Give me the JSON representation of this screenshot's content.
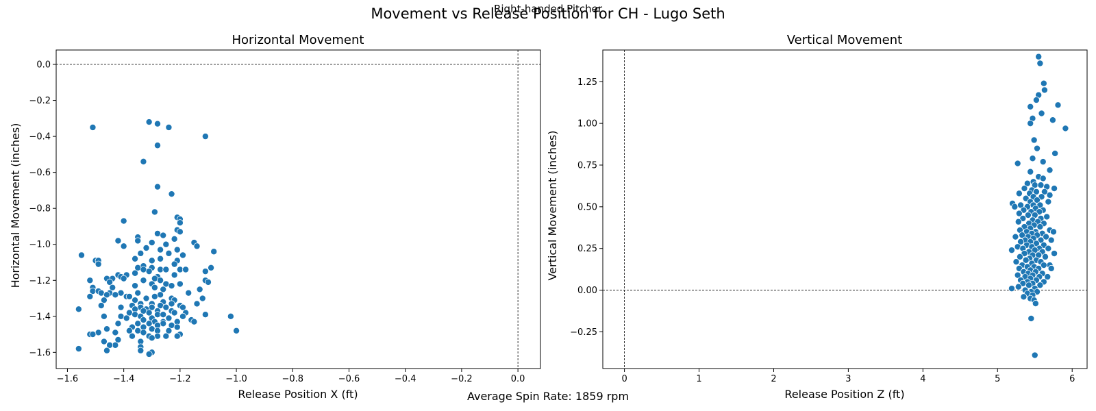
{
  "figure": {
    "suptitle": "Movement vs Release Position for CH - Lugo Seth",
    "subtitle": "Right-handed Pitcher",
    "footer": "Average Spin Rate: 1859 rpm"
  },
  "colors": {
    "point": "#1f77b4",
    "point_edge": "#ffffff",
    "axis": "#000000"
  },
  "chart_data": [
    {
      "type": "scatter",
      "title": "Horizontal Movement",
      "xlabel": "Release Position X (ft)",
      "ylabel": "Horizontal Movement (inches)",
      "xlim": [
        -1.64,
        0.08
      ],
      "ylim": [
        -1.69,
        0.08
      ],
      "xticks": [
        -1.6,
        -1.4,
        -1.2,
        -1.0,
        -0.8,
        -0.6,
        -0.4,
        -0.2,
        0.0
      ],
      "xtick_labels": [
        "−1.6",
        "−1.4",
        "−1.2",
        "−1.0",
        "−0.8",
        "−0.6",
        "−0.4",
        "−0.2",
        "0.0"
      ],
      "yticks": [
        0.0,
        -0.2,
        -0.4,
        -0.6,
        -0.8,
        -1.0,
        -1.2,
        -1.4,
        -1.6
      ],
      "ytick_labels": [
        "0.0",
        "−0.2",
        "−0.4",
        "−0.6",
        "−0.8",
        "−1.0",
        "−1.2",
        "−1.4",
        "−1.6"
      ],
      "ref_lines": {
        "x": 0.0,
        "y": 0.0
      },
      "grid": false,
      "points": [
        [
          -1.51,
          -0.35
        ],
        [
          -1.31,
          -0.32
        ],
        [
          -1.28,
          -0.33
        ],
        [
          -1.24,
          -0.35
        ],
        [
          -1.11,
          -0.4
        ],
        [
          -1.28,
          -0.45
        ],
        [
          -1.33,
          -0.54
        ],
        [
          -1.28,
          -0.68
        ],
        [
          -1.23,
          -0.72
        ],
        [
          -1.29,
          -0.82
        ],
        [
          -1.21,
          -0.85
        ],
        [
          -1.2,
          -0.86
        ],
        [
          -1.4,
          -0.87
        ],
        [
          -1.2,
          -0.88
        ],
        [
          -1.21,
          -0.92
        ],
        [
          -1.2,
          -0.93
        ],
        [
          -1.28,
          -0.94
        ],
        [
          -1.26,
          -0.95
        ],
        [
          -1.35,
          -0.96
        ],
        [
          -1.22,
          -0.97
        ],
        [
          -1.42,
          -0.98
        ],
        [
          -1.35,
          -0.98
        ],
        [
          -1.3,
          -0.99
        ],
        [
          -1.15,
          -0.99
        ],
        [
          -1.25,
          -1.0
        ],
        [
          -1.14,
          -1.01
        ],
        [
          -1.4,
          -1.01
        ],
        [
          -1.32,
          -1.02
        ],
        [
          -1.27,
          -1.03
        ],
        [
          -1.21,
          -1.03
        ],
        [
          -1.08,
          -1.04
        ],
        [
          -1.24,
          -1.05
        ],
        [
          -1.34,
          -1.05
        ],
        [
          -1.55,
          -1.06
        ],
        [
          -1.19,
          -1.06
        ],
        [
          -1.27,
          -1.08
        ],
        [
          -1.36,
          -1.08
        ],
        [
          -1.3,
          -1.09
        ],
        [
          -1.5,
          -1.09
        ],
        [
          -1.49,
          -1.09
        ],
        [
          -1.21,
          -1.09
        ],
        [
          -1.49,
          -1.11
        ],
        [
          -1.22,
          -1.11
        ],
        [
          -1.33,
          -1.12
        ],
        [
          -1.35,
          -1.13
        ],
        [
          -1.3,
          -1.13
        ],
        [
          -1.09,
          -1.13
        ],
        [
          -1.27,
          -1.14
        ],
        [
          -1.2,
          -1.14
        ],
        [
          -1.25,
          -1.14
        ],
        [
          -1.33,
          -1.14
        ],
        [
          -1.18,
          -1.14
        ],
        [
          -1.31,
          -1.15
        ],
        [
          -1.11,
          -1.15
        ],
        [
          -1.36,
          -1.16
        ],
        [
          -1.42,
          -1.17
        ],
        [
          -1.39,
          -1.17
        ],
        [
          -1.22,
          -1.17
        ],
        [
          -1.28,
          -1.18
        ],
        [
          -1.41,
          -1.18
        ],
        [
          -1.44,
          -1.19
        ],
        [
          -1.46,
          -1.19
        ],
        [
          -1.4,
          -1.19
        ],
        [
          -1.29,
          -1.19
        ],
        [
          -1.52,
          -1.2
        ],
        [
          -1.11,
          -1.2
        ],
        [
          -1.27,
          -1.2
        ],
        [
          -1.33,
          -1.2
        ],
        [
          -1.45,
          -1.21
        ],
        [
          -1.1,
          -1.21
        ],
        [
          -1.25,
          -1.22
        ],
        [
          -1.2,
          -1.22
        ],
        [
          -1.3,
          -1.22
        ],
        [
          -1.23,
          -1.23
        ],
        [
          -1.36,
          -1.23
        ],
        [
          -1.29,
          -1.24
        ],
        [
          -1.44,
          -1.24
        ],
        [
          -1.51,
          -1.24
        ],
        [
          -1.26,
          -1.25
        ],
        [
          -1.13,
          -1.25
        ],
        [
          -1.51,
          -1.26
        ],
        [
          -1.49,
          -1.26
        ],
        [
          -1.48,
          -1.27
        ],
        [
          -1.41,
          -1.27
        ],
        [
          -1.35,
          -1.27
        ],
        [
          -1.17,
          -1.27
        ],
        [
          -1.45,
          -1.27
        ],
        [
          -1.46,
          -1.28
        ],
        [
          -1.27,
          -1.28
        ],
        [
          -1.43,
          -1.28
        ],
        [
          -1.39,
          -1.29
        ],
        [
          -1.38,
          -1.29
        ],
        [
          -1.29,
          -1.29
        ],
        [
          -1.52,
          -1.29
        ],
        [
          -1.32,
          -1.3
        ],
        [
          -1.23,
          -1.3
        ],
        [
          -1.12,
          -1.3
        ],
        [
          -1.47,
          -1.31
        ],
        [
          -1.36,
          -1.31
        ],
        [
          -1.22,
          -1.31
        ],
        [
          -1.26,
          -1.32
        ],
        [
          -1.3,
          -1.33
        ],
        [
          -1.34,
          -1.33
        ],
        [
          -1.23,
          -1.33
        ],
        [
          -1.14,
          -1.33
        ],
        [
          -1.37,
          -1.34
        ],
        [
          -1.2,
          -1.34
        ],
        [
          -1.27,
          -1.34
        ],
        [
          -1.48,
          -1.34
        ],
        [
          -1.3,
          -1.35
        ],
        [
          -1.41,
          -1.35
        ],
        [
          -1.34,
          -1.35
        ],
        [
          -1.25,
          -1.35
        ],
        [
          -1.19,
          -1.35
        ],
        [
          -1.56,
          -1.36
        ],
        [
          -1.36,
          -1.36
        ],
        [
          -1.32,
          -1.36
        ],
        [
          -1.28,
          -1.37
        ],
        [
          -1.23,
          -1.37
        ],
        [
          -1.33,
          -1.37
        ],
        [
          -1.38,
          -1.38
        ],
        [
          -1.31,
          -1.38
        ],
        [
          -1.22,
          -1.38
        ],
        [
          -1.18,
          -1.38
        ],
        [
          -1.36,
          -1.39
        ],
        [
          -1.28,
          -1.39
        ],
        [
          -1.11,
          -1.39
        ],
        [
          -1.26,
          -1.39
        ],
        [
          -1.34,
          -1.4
        ],
        [
          -1.02,
          -1.4
        ],
        [
          -1.41,
          -1.4
        ],
        [
          -1.19,
          -1.4
        ],
        [
          -1.47,
          -1.4
        ],
        [
          -1.3,
          -1.41
        ],
        [
          -1.39,
          -1.41
        ],
        [
          -1.24,
          -1.41
        ],
        [
          -1.33,
          -1.42
        ],
        [
          -1.16,
          -1.42
        ],
        [
          -1.29,
          -1.43
        ],
        [
          -1.26,
          -1.43
        ],
        [
          -1.21,
          -1.43
        ],
        [
          -1.35,
          -1.44
        ],
        [
          -1.42,
          -1.44
        ],
        [
          -1.31,
          -1.44
        ],
        [
          -1.26,
          -1.44
        ],
        [
          -1.15,
          -1.43
        ],
        [
          -1.23,
          -1.45
        ],
        [
          -1.28,
          -1.45
        ],
        [
          -1.33,
          -1.46
        ],
        [
          -1.37,
          -1.46
        ],
        [
          -1.21,
          -1.46
        ],
        [
          -1.3,
          -1.47
        ],
        [
          -1.46,
          -1.47
        ],
        [
          -1.38,
          -1.48
        ],
        [
          -1.28,
          -1.48
        ],
        [
          -1.0,
          -1.48
        ],
        [
          -1.35,
          -1.48
        ],
        [
          -1.24,
          -1.48
        ],
        [
          -1.49,
          -1.49
        ],
        [
          -1.33,
          -1.49
        ],
        [
          -1.43,
          -1.49
        ],
        [
          -1.52,
          -1.5
        ],
        [
          -1.51,
          -1.5
        ],
        [
          -1.28,
          -1.51
        ],
        [
          -1.2,
          -1.5
        ],
        [
          -1.25,
          -1.51
        ],
        [
          -1.37,
          -1.51
        ],
        [
          -1.31,
          -1.51
        ],
        [
          -1.21,
          -1.51
        ],
        [
          -1.3,
          -1.52
        ],
        [
          -1.47,
          -1.54
        ],
        [
          -1.42,
          -1.53
        ],
        [
          -1.34,
          -1.54
        ],
        [
          -1.43,
          -1.56
        ],
        [
          -1.45,
          -1.56
        ],
        [
          -1.34,
          -1.57
        ],
        [
          -1.56,
          -1.58
        ],
        [
          -1.46,
          -1.59
        ],
        [
          -1.34,
          -1.59
        ],
        [
          -1.3,
          -1.6
        ],
        [
          -1.31,
          -1.61
        ]
      ]
    },
    {
      "type": "scatter",
      "title": "Vertical Movement",
      "xlabel": "Release Position Z (ft)",
      "ylabel": "Vertical Movement (inches)",
      "xlim": [
        -0.29,
        6.2
      ],
      "ylim": [
        -0.47,
        1.44
      ],
      "xticks": [
        0,
        1,
        2,
        3,
        4,
        5,
        6
      ],
      "xtick_labels": [
        "0",
        "1",
        "2",
        "3",
        "4",
        "5",
        "6"
      ],
      "yticks": [
        1.25,
        1.0,
        0.75,
        0.5,
        0.25,
        0.0,
        -0.25
      ],
      "ytick_labels": [
        "1.25",
        "1.00",
        "0.75",
        "0.50",
        "0.25",
        "0.00",
        "−0.25"
      ],
      "ref_lines": {
        "x": 0.0,
        "y": 0.0
      },
      "grid": false,
      "points": [
        [
          5.55,
          1.4
        ],
        [
          5.57,
          1.36
        ],
        [
          5.62,
          1.24
        ],
        [
          5.63,
          1.2
        ],
        [
          5.55,
          1.17
        ],
        [
          5.52,
          1.14
        ],
        [
          5.81,
          1.11
        ],
        [
          5.44,
          1.1
        ],
        [
          5.59,
          1.06
        ],
        [
          5.47,
          1.03
        ],
        [
          5.74,
          1.02
        ],
        [
          5.44,
          1.0
        ],
        [
          5.91,
          0.97
        ],
        [
          5.49,
          0.9
        ],
        [
          5.53,
          0.85
        ],
        [
          5.77,
          0.82
        ],
        [
          5.47,
          0.79
        ],
        [
          5.61,
          0.77
        ],
        [
          5.27,
          0.76
        ],
        [
          5.7,
          0.72
        ],
        [
          5.44,
          0.71
        ],
        [
          5.55,
          0.68
        ],
        [
          5.61,
          0.67
        ],
        [
          5.48,
          0.65
        ],
        [
          5.4,
          0.64
        ],
        [
          5.5,
          0.63
        ],
        [
          5.58,
          0.63
        ],
        [
          5.66,
          0.62
        ],
        [
          5.36,
          0.61
        ],
        [
          5.76,
          0.61
        ],
        [
          5.46,
          0.6
        ],
        [
          5.52,
          0.59
        ],
        [
          5.63,
          0.59
        ],
        [
          5.29,
          0.58
        ],
        [
          5.43,
          0.58
        ],
        [
          5.7,
          0.57
        ],
        [
          5.48,
          0.56
        ],
        [
          5.59,
          0.56
        ],
        [
          5.38,
          0.55
        ],
        [
          5.53,
          0.54
        ],
        [
          5.68,
          0.53
        ],
        [
          5.44,
          0.53
        ],
        [
          5.2,
          0.52
        ],
        [
          5.31,
          0.51
        ],
        [
          5.48,
          0.51
        ],
        [
          5.57,
          0.51
        ],
        [
          5.4,
          0.5
        ],
        [
          5.23,
          0.5
        ],
        [
          5.51,
          0.49
        ],
        [
          5.61,
          0.48
        ],
        [
          5.35,
          0.48
        ],
        [
          5.45,
          0.47
        ],
        [
          5.56,
          0.47
        ],
        [
          5.29,
          0.46
        ],
        [
          5.5,
          0.45
        ],
        [
          5.41,
          0.45
        ],
        [
          5.66,
          0.44
        ],
        [
          5.58,
          0.43
        ],
        [
          5.34,
          0.43
        ],
        [
          5.47,
          0.42
        ],
        [
          5.54,
          0.41
        ],
        [
          5.28,
          0.41
        ],
        [
          5.42,
          0.4
        ],
        [
          5.62,
          0.4
        ],
        [
          5.49,
          0.39
        ],
        [
          5.36,
          0.38
        ],
        [
          5.57,
          0.38
        ],
        [
          5.44,
          0.37
        ],
        [
          5.7,
          0.36
        ],
        [
          5.3,
          0.36
        ],
        [
          5.51,
          0.35
        ],
        [
          5.39,
          0.35
        ],
        [
          5.75,
          0.35
        ],
        [
          5.6,
          0.34
        ],
        [
          5.46,
          0.34
        ],
        [
          5.33,
          0.33
        ],
        [
          5.53,
          0.33
        ],
        [
          5.41,
          0.32
        ],
        [
          5.24,
          0.32
        ],
        [
          5.65,
          0.32
        ],
        [
          5.48,
          0.31
        ],
        [
          5.37,
          0.3
        ],
        [
          5.58,
          0.3
        ],
        [
          5.72,
          0.3
        ],
        [
          5.44,
          0.29
        ],
        [
          5.31,
          0.29
        ],
        [
          5.52,
          0.28
        ],
        [
          5.62,
          0.27
        ],
        [
          5.39,
          0.27
        ],
        [
          5.46,
          0.26
        ],
        [
          5.27,
          0.26
        ],
        [
          5.56,
          0.25
        ],
        [
          5.34,
          0.25
        ],
        [
          5.68,
          0.25
        ],
        [
          5.5,
          0.24
        ],
        [
          5.19,
          0.24
        ],
        [
          5.42,
          0.23
        ],
        [
          5.6,
          0.23
        ],
        [
          5.76,
          0.22
        ],
        [
          5.36,
          0.22
        ],
        [
          5.47,
          0.21
        ],
        [
          5.55,
          0.21
        ],
        [
          5.3,
          0.2
        ],
        [
          5.64,
          0.2
        ],
        [
          5.43,
          0.19
        ],
        [
          5.52,
          0.18
        ],
        [
          5.38,
          0.18
        ],
        [
          5.25,
          0.17
        ],
        [
          5.58,
          0.17
        ],
        [
          5.46,
          0.16
        ],
        [
          5.33,
          0.15
        ],
        [
          5.7,
          0.15
        ],
        [
          5.62,
          0.15
        ],
        [
          5.49,
          0.14
        ],
        [
          5.4,
          0.14
        ],
        [
          5.55,
          0.13
        ],
        [
          5.29,
          0.13
        ],
        [
          5.72,
          0.13
        ],
        [
          5.44,
          0.12
        ],
        [
          5.35,
          0.11
        ],
        [
          5.51,
          0.11
        ],
        [
          5.6,
          0.1
        ],
        [
          5.41,
          0.1
        ],
        [
          5.27,
          0.09
        ],
        [
          5.47,
          0.09
        ],
        [
          5.56,
          0.08
        ],
        [
          5.37,
          0.08
        ],
        [
          5.67,
          0.08
        ],
        [
          5.44,
          0.07
        ],
        [
          5.31,
          0.06
        ],
        [
          5.52,
          0.06
        ],
        [
          5.4,
          0.05
        ],
        [
          5.62,
          0.05
        ],
        [
          5.47,
          0.04
        ],
        [
          5.34,
          0.04
        ],
        [
          5.57,
          0.03
        ],
        [
          5.42,
          0.03
        ],
        [
          5.28,
          0.02
        ],
        [
          5.5,
          0.01
        ],
        [
          5.19,
          0.01
        ],
        [
          5.37,
          0.0
        ],
        [
          5.45,
          -0.01
        ],
        [
          5.53,
          -0.01
        ],
        [
          5.4,
          -0.02
        ],
        [
          5.47,
          -0.03
        ],
        [
          5.35,
          -0.04
        ],
        [
          5.44,
          -0.05
        ],
        [
          5.49,
          -0.06
        ],
        [
          5.51,
          -0.08
        ],
        [
          5.45,
          -0.17
        ],
        [
          5.5,
          -0.39
        ]
      ]
    }
  ]
}
